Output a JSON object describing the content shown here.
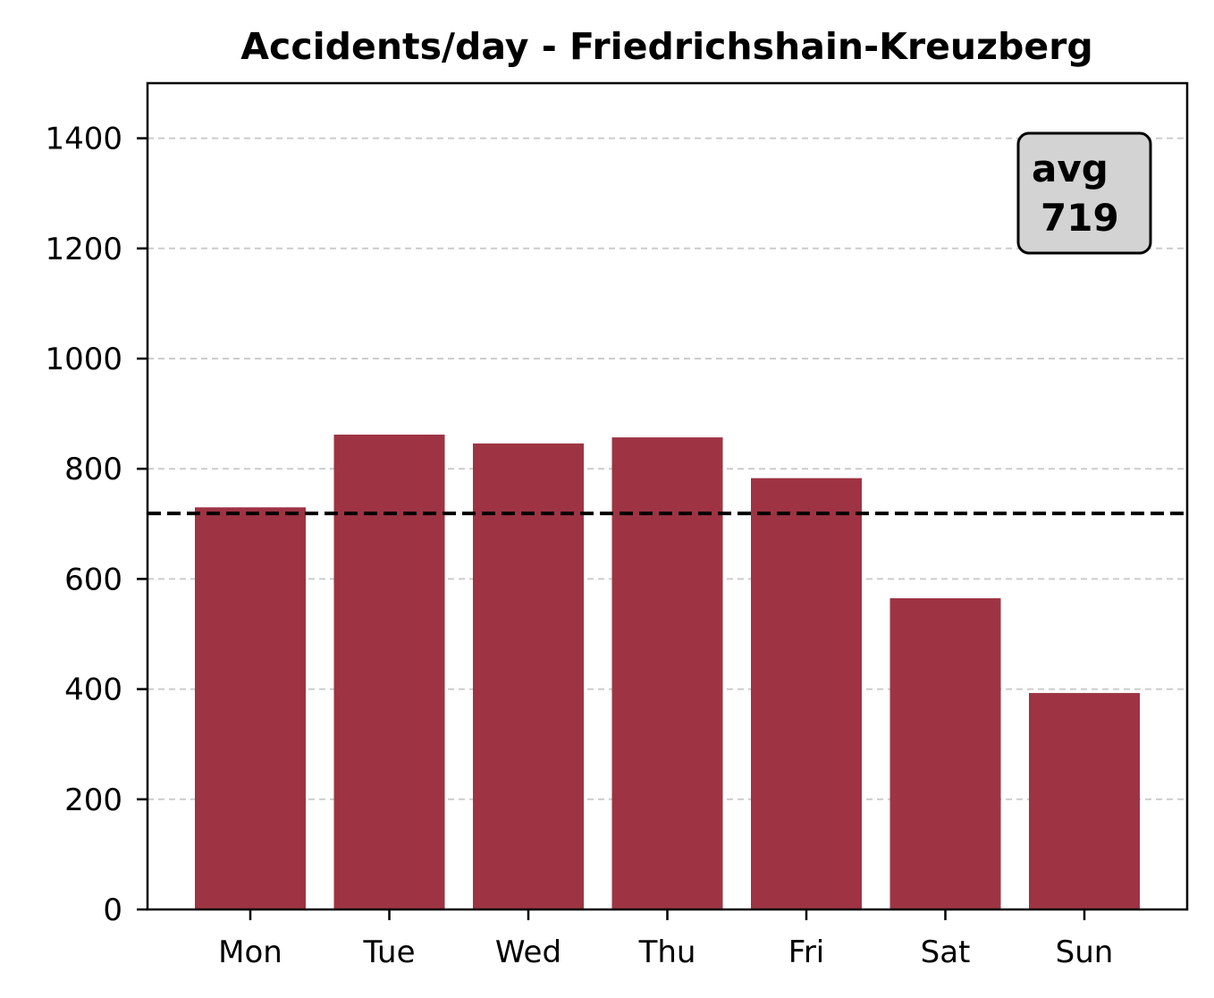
{
  "chart_data": {
    "type": "bar",
    "title": "Accidents/day - Friedrichshain-Kreuzberg",
    "xlabel": "",
    "ylabel": "",
    "categories": [
      "Mon",
      "Tue",
      "Wed",
      "Thu",
      "Fri",
      "Sat",
      "Sun"
    ],
    "values": [
      730,
      862,
      846,
      857,
      783,
      565,
      393
    ],
    "ylim": [
      0,
      1500
    ],
    "yticks": [
      0,
      200,
      400,
      600,
      800,
      1000,
      1200,
      1400
    ],
    "grid": "y-dashed",
    "average": {
      "value": 719,
      "line_style": "dashed",
      "label_line1": "avg",
      "label_line2": "719",
      "label_placement": "top-right"
    },
    "colors": {
      "bar": "#9e3443",
      "grid": "#cccccc",
      "avg_line": "#000000",
      "avg_box_fill": "#d3d3d3"
    }
  }
}
